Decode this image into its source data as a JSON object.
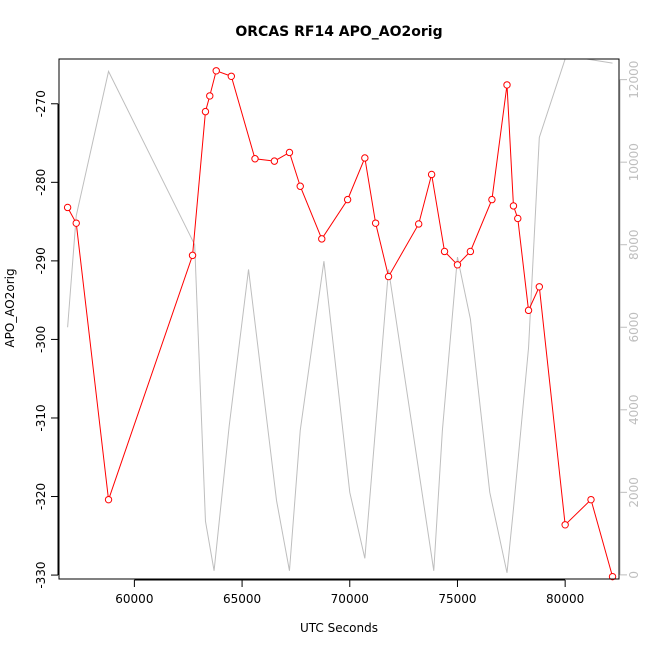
{
  "chart_data": {
    "type": "line",
    "title": "ORCAS RF14 APO_AO2orig",
    "xlabel": "UTC Seconds",
    "ylabel": "APO_AO2orig",
    "xlim": [
      56500,
      82500
    ],
    "ylim": [
      -330.5,
      -264.3
    ],
    "y2lim": [
      -100,
      12500
    ],
    "x_ticks": [
      60000,
      65000,
      70000,
      75000,
      80000
    ],
    "x_tick_labels": [
      "60000",
      "65000",
      "70000",
      "75000",
      "80000"
    ],
    "y_ticks": [
      -330,
      -320,
      -310,
      -300,
      -290,
      -280,
      -270
    ],
    "y_tick_labels": [
      "-330",
      "-320",
      "-310",
      "-300",
      "-290",
      "-280",
      "-270"
    ],
    "y2_ticks": [
      0,
      2000,
      4000,
      6000,
      8000,
      10000,
      12000
    ],
    "y2_tick_labels": [
      "0",
      "2000",
      "4000",
      "6000",
      "8000",
      "10000",
      "12000"
    ],
    "grid": false,
    "series": [
      {
        "axis": "left",
        "color": "#ff0000",
        "style": "line+points",
        "x": [
          56900,
          57300,
          58800,
          62700,
          63300,
          63500,
          63800,
          64500,
          65600,
          66500,
          67200,
          67700,
          68700,
          69900,
          70700,
          71200,
          71800,
          73200,
          73800,
          74400,
          75000,
          75600,
          76600,
          77300,
          77600,
          77800,
          78300,
          78800,
          80000,
          81200,
          82200
        ],
        "y": [
          -283.2,
          -285.2,
          -320.4,
          -289.3,
          -271.0,
          -269.0,
          -265.8,
          -266.5,
          -277.0,
          -277.3,
          -276.2,
          -280.5,
          -287.2,
          -282.2,
          -276.9,
          -285.2,
          -292.0,
          -285.3,
          -279.0,
          -288.8,
          -290.5,
          -288.8,
          -282.2,
          -267.6,
          -283.0,
          -284.6,
          -296.3,
          -293.3,
          -323.6,
          -320.4,
          -330.2
        ]
      },
      {
        "axis": "right",
        "color": "#bebebe",
        "style": "line",
        "x": [
          56900,
          57300,
          58800,
          62800,
          63300,
          63700,
          64400,
          65300,
          66600,
          67200,
          67700,
          68800,
          70000,
          70700,
          71800,
          73900,
          74300,
          75000,
          75600,
          76500,
          77300,
          77600,
          78300,
          78800,
          80000,
          81000,
          82200
        ],
        "y": [
          6000,
          8700,
          12200,
          8000,
          1300,
          100,
          3600,
          7400,
          1800,
          100,
          3500,
          7600,
          2000,
          400,
          7400,
          100,
          3500,
          7700,
          6200,
          2000,
          50,
          1600,
          5500,
          10600,
          12500,
          12500,
          12400
        ]
      }
    ]
  }
}
